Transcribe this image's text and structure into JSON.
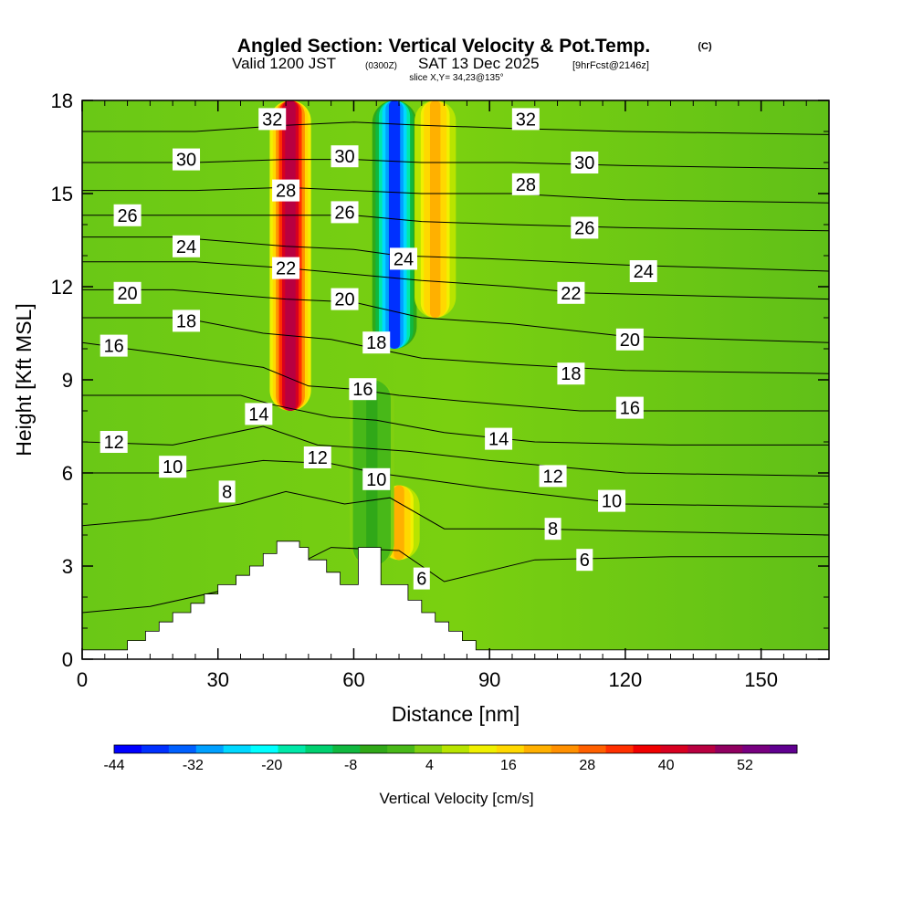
{
  "chart_data": {
    "type": "heatmap",
    "title": {
      "main": "Angled Section: Vertical Velocity & Pot.Temp.",
      "unit": "(C)",
      "valid_prefix": "Valid 1200 JST",
      "valid_z": "(0300Z)",
      "valid_date": "SAT 13 Dec 2025",
      "fcst": "[9hrFcst@2146z]",
      "slice": "slice X,Y= 34,23@135°"
    },
    "xlabel": "Distance [nm]",
    "ylabel": "Height [Kft MSL]",
    "xlim": [
      0,
      165
    ],
    "ylim": [
      0,
      18
    ],
    "xticks": [
      "0",
      "30",
      "60",
      "90",
      "120",
      "150"
    ],
    "yticks": [
      "0",
      "3",
      "6",
      "9",
      "12",
      "15",
      "18"
    ],
    "colorbar": {
      "label": "Vertical Velocity [cm/s]",
      "tick_labels": [
        "-44",
        "-32",
        "-20",
        "-8",
        "4",
        "16",
        "28",
        "40",
        "52"
      ],
      "colors": [
        "#0000ff",
        "#0030ff",
        "#0060ff",
        "#00a0ff",
        "#00d8ff",
        "#00ffff",
        "#00e8a8",
        "#00d070",
        "#10b840",
        "#30a818",
        "#48b818",
        "#80d010",
        "#b8e400",
        "#f0f000",
        "#ffd800",
        "#ffb000",
        "#ff9000",
        "#ff6000",
        "#ff3000",
        "#f00000",
        "#d80020",
        "#b80040",
        "#900060",
        "#780080",
        "#600090"
      ]
    },
    "terrain_profile": {
      "x_nm": [
        0,
        10,
        10,
        14,
        14,
        17,
        17,
        20,
        20,
        24,
        24,
        27,
        27,
        30,
        30,
        34,
        34,
        37,
        37,
        40,
        40,
        43,
        43,
        48,
        48,
        50,
        50,
        54,
        54,
        57,
        57,
        61,
        61,
        66,
        66,
        72,
        72,
        75,
        75,
        78,
        78,
        81,
        81,
        84,
        84,
        87,
        87,
        90,
        90,
        165
      ],
      "height_kft": [
        0.3,
        0.3,
        0.6,
        0.6,
        0.9,
        0.9,
        1.2,
        1.2,
        1.5,
        1.5,
        1.8,
        1.8,
        2.1,
        2.1,
        2.4,
        2.4,
        2.7,
        2.7,
        3.0,
        3.0,
        3.4,
        3.4,
        3.8,
        3.8,
        3.6,
        3.6,
        3.2,
        3.2,
        2.8,
        2.8,
        2.4,
        2.4,
        3.6,
        3.6,
        2.4,
        2.4,
        1.9,
        1.9,
        1.5,
        1.5,
        1.2,
        1.2,
        0.9,
        0.9,
        0.6,
        0.6,
        0.3,
        0.3,
        0.3,
        0.3
      ]
    },
    "velocity_features": [
      {
        "name": "updraft-column-west",
        "x_nm": 46,
        "y_from_kft": 8,
        "y_to_kft": 18,
        "peak_cm_s": 44
      },
      {
        "name": "downdraft-column",
        "x_nm": 69,
        "y_from_kft": 10,
        "y_to_kft": 18,
        "peak_cm_s": -44
      },
      {
        "name": "updraft-low-east",
        "x_nm": 70,
        "y_from_kft": 3.2,
        "y_to_kft": 5.6,
        "peak_cm_s": 16
      },
      {
        "name": "updraft-column-east",
        "x_nm": 78,
        "y_from_kft": 11,
        "y_to_kft": 18,
        "peak_cm_s": 16
      },
      {
        "name": "downdraft-band",
        "x_nm": 64,
        "y_from_kft": 3,
        "y_to_kft": 9,
        "peak_cm_s": -8
      }
    ],
    "potential_temperature_isolines_c": [
      {
        "value": "6",
        "x_nm": [
          0,
          15,
          40,
          55,
          70,
          80,
          100,
          130,
          165
        ],
        "y_kft": [
          1.5,
          1.7,
          2.5,
          3.6,
          3.5,
          2.5,
          3.2,
          3.3,
          3.3
        ]
      },
      {
        "value": "8",
        "x_nm": [
          0,
          15,
          35,
          45,
          58,
          68,
          80,
          100,
          130,
          165
        ],
        "y_kft": [
          4.3,
          4.5,
          5.0,
          5.4,
          5.0,
          5.2,
          4.2,
          4.2,
          4.1,
          4.0
        ]
      },
      {
        "value": "10",
        "x_nm": [
          0,
          20,
          40,
          55,
          65,
          75,
          90,
          120,
          165
        ],
        "y_kft": [
          6.0,
          6.0,
          6.4,
          6.3,
          6.0,
          5.8,
          5.5,
          5.0,
          4.9
        ]
      },
      {
        "value": "12",
        "x_nm": [
          0,
          20,
          40,
          52,
          62,
          72,
          90,
          120,
          165
        ],
        "y_kft": [
          7.0,
          6.9,
          7.5,
          6.9,
          6.8,
          6.7,
          6.4,
          6.0,
          5.9
        ]
      },
      {
        "value": "14",
        "x_nm": [
          0,
          20,
          35,
          42,
          55,
          65,
          80,
          100,
          130,
          165
        ],
        "y_kft": [
          8.5,
          8.5,
          8.5,
          8.2,
          7.8,
          7.7,
          7.3,
          7.0,
          6.9,
          6.9
        ]
      },
      {
        "value": "16",
        "x_nm": [
          0,
          20,
          40,
          50,
          60,
          70,
          85,
          110,
          165
        ],
        "y_kft": [
          10.2,
          9.8,
          9.4,
          8.8,
          8.7,
          8.5,
          8.3,
          8.0,
          8.0
        ]
      },
      {
        "value": "18",
        "x_nm": [
          0,
          22,
          40,
          55,
          65,
          75,
          95,
          120,
          165
        ],
        "y_kft": [
          11.0,
          11.0,
          10.5,
          10.3,
          10.0,
          9.7,
          9.5,
          9.3,
          9.2
        ]
      },
      {
        "value": "20",
        "x_nm": [
          0,
          20,
          45,
          60,
          75,
          95,
          120,
          165
        ],
        "y_kft": [
          11.9,
          11.9,
          11.6,
          11.5,
          11.0,
          10.8,
          10.4,
          10.2
        ]
      },
      {
        "value": "22",
        "x_nm": [
          0,
          25,
          45,
          60,
          75,
          95,
          110,
          165
        ],
        "y_kft": [
          12.8,
          12.8,
          12.6,
          12.4,
          12.2,
          12.0,
          11.8,
          11.6
        ]
      },
      {
        "value": "24",
        "x_nm": [
          0,
          20,
          45,
          60,
          70,
          90,
          120,
          165
        ],
        "y_kft": [
          13.6,
          13.6,
          13.3,
          13.2,
          13.0,
          12.9,
          12.7,
          12.5
        ]
      },
      {
        "value": "26",
        "x_nm": [
          0,
          20,
          45,
          60,
          75,
          95,
          120,
          165
        ],
        "y_kft": [
          14.3,
          14.3,
          14.3,
          14.3,
          14.1,
          14.0,
          13.9,
          13.8
        ]
      },
      {
        "value": "28",
        "x_nm": [
          0,
          25,
          45,
          60,
          75,
          95,
          120,
          165
        ],
        "y_kft": [
          15.1,
          15.1,
          15.2,
          15.1,
          15.0,
          15.0,
          14.8,
          14.7
        ]
      },
      {
        "value": "30",
        "x_nm": [
          0,
          25,
          45,
          60,
          75,
          95,
          120,
          165
        ],
        "y_kft": [
          16.0,
          16.0,
          16.1,
          16.1,
          16.0,
          16.0,
          15.9,
          15.8
        ]
      },
      {
        "value": "32",
        "x_nm": [
          0,
          25,
          45,
          60,
          75,
          95,
          120,
          165
        ],
        "y_kft": [
          17.0,
          17.0,
          17.2,
          17.3,
          17.2,
          17.1,
          17.0,
          16.9
        ]
      }
    ],
    "contour_labels": [
      {
        "text": "32",
        "x_nm": 42,
        "y_kft": 17.4
      },
      {
        "text": "30",
        "x_nm": 23,
        "y_kft": 16.1
      },
      {
        "text": "30",
        "x_nm": 58,
        "y_kft": 16.2
      },
      {
        "text": "28",
        "x_nm": 45,
        "y_kft": 15.1
      },
      {
        "text": "26",
        "x_nm": 10,
        "y_kft": 14.3
      },
      {
        "text": "26",
        "x_nm": 58,
        "y_kft": 14.4
      },
      {
        "text": "24",
        "x_nm": 23,
        "y_kft": 13.3
      },
      {
        "text": "24",
        "x_nm": 71,
        "y_kft": 12.9
      },
      {
        "text": "22",
        "x_nm": 45,
        "y_kft": 12.6
      },
      {
        "text": "20",
        "x_nm": 10,
        "y_kft": 11.8
      },
      {
        "text": "20",
        "x_nm": 58,
        "y_kft": 11.6
      },
      {
        "text": "18",
        "x_nm": 23,
        "y_kft": 10.9
      },
      {
        "text": "18",
        "x_nm": 65,
        "y_kft": 10.2
      },
      {
        "text": "16",
        "x_nm": 7,
        "y_kft": 10.1
      },
      {
        "text": "16",
        "x_nm": 62,
        "y_kft": 8.7
      },
      {
        "text": "14",
        "x_nm": 39,
        "y_kft": 7.9
      },
      {
        "text": "12",
        "x_nm": 7,
        "y_kft": 7.0
      },
      {
        "text": "12",
        "x_nm": 52,
        "y_kft": 6.5
      },
      {
        "text": "10",
        "x_nm": 20,
        "y_kft": 6.2
      },
      {
        "text": "10",
        "x_nm": 65,
        "y_kft": 5.8
      },
      {
        "text": "8",
        "x_nm": 32,
        "y_kft": 5.4
      },
      {
        "text": "6",
        "x_nm": 75,
        "y_kft": 2.6
      },
      {
        "text": "32",
        "x_nm": 98,
        "y_kft": 17.4
      },
      {
        "text": "30",
        "x_nm": 111,
        "y_kft": 16.0
      },
      {
        "text": "28",
        "x_nm": 98,
        "y_kft": 15.3
      },
      {
        "text": "26",
        "x_nm": 111,
        "y_kft": 13.9
      },
      {
        "text": "24",
        "x_nm": 124,
        "y_kft": 12.5
      },
      {
        "text": "22",
        "x_nm": 108,
        "y_kft": 11.8
      },
      {
        "text": "20",
        "x_nm": 121,
        "y_kft": 10.3
      },
      {
        "text": "18",
        "x_nm": 108,
        "y_kft": 9.2
      },
      {
        "text": "16",
        "x_nm": 121,
        "y_kft": 8.1
      },
      {
        "text": "14",
        "x_nm": 92,
        "y_kft": 7.1
      },
      {
        "text": "12",
        "x_nm": 104,
        "y_kft": 5.9
      },
      {
        "text": "10",
        "x_nm": 117,
        "y_kft": 5.1
      },
      {
        "text": "8",
        "x_nm": 104,
        "y_kft": 4.2
      },
      {
        "text": "6",
        "x_nm": 111,
        "y_kft": 3.2
      }
    ]
  }
}
